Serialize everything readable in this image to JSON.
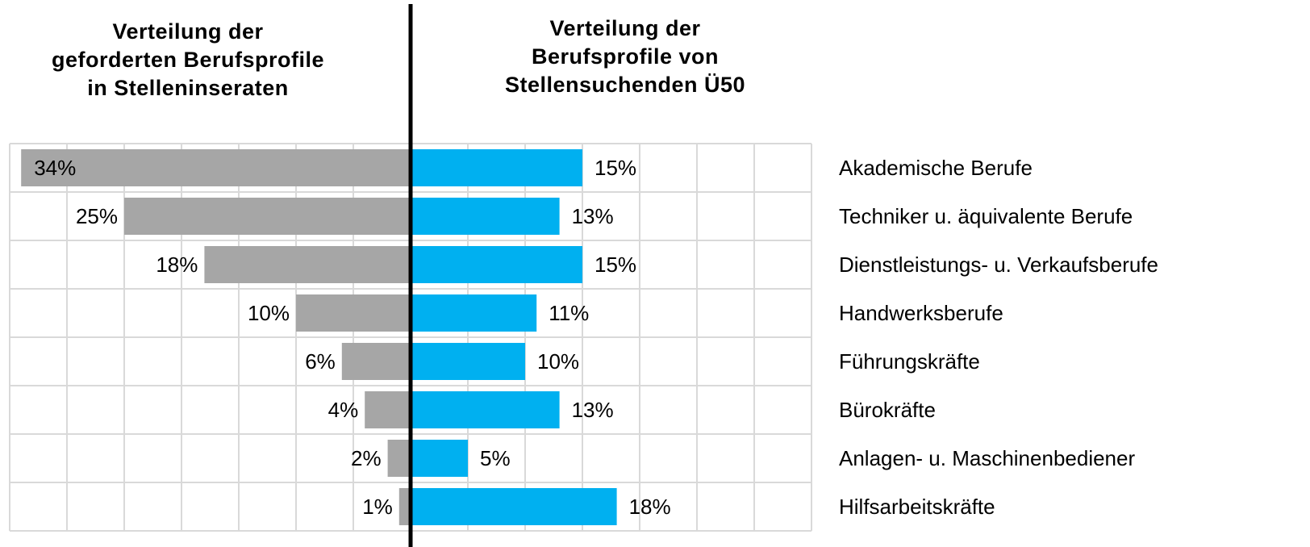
{
  "chart_data": {
    "type": "butterfly",
    "categories": [
      "Akademische Berufe",
      "Techniker u. äquivalente Berufe",
      "Dienstleistungs- u. Verkaufsberufe",
      "Handwerksberufe",
      "Führungskräfte",
      "Bürokräfte",
      "Anlagen- u. Maschinenbediener",
      "Hilfsarbeitskräfte"
    ],
    "series": [
      {
        "name": "Verteilung der\ngeforderten Berufsprofile\nin Stelleninseraten",
        "side": "left",
        "color": "#a6a6a6",
        "values": [
          34,
          25,
          18,
          10,
          6,
          4,
          2,
          1
        ],
        "value_labels": [
          "34%",
          "25%",
          "18%",
          "10%",
          "6%",
          "4%",
          "2%",
          "1%"
        ]
      },
      {
        "name": "Verteilung der\nBerufsprofile von\nStellensuchenden Ü50",
        "side": "right",
        "color": "#00b0f0",
        "values": [
          15,
          13,
          15,
          11,
          10,
          13,
          5,
          18
        ],
        "value_labels": [
          "15%",
          "13%",
          "15%",
          "11%",
          "10%",
          "13%",
          "5%",
          "18%"
        ]
      }
    ],
    "xlim": [
      0,
      35
    ],
    "xticks": [
      0,
      5,
      10,
      15,
      20,
      25,
      30,
      35
    ],
    "grid": true
  }
}
